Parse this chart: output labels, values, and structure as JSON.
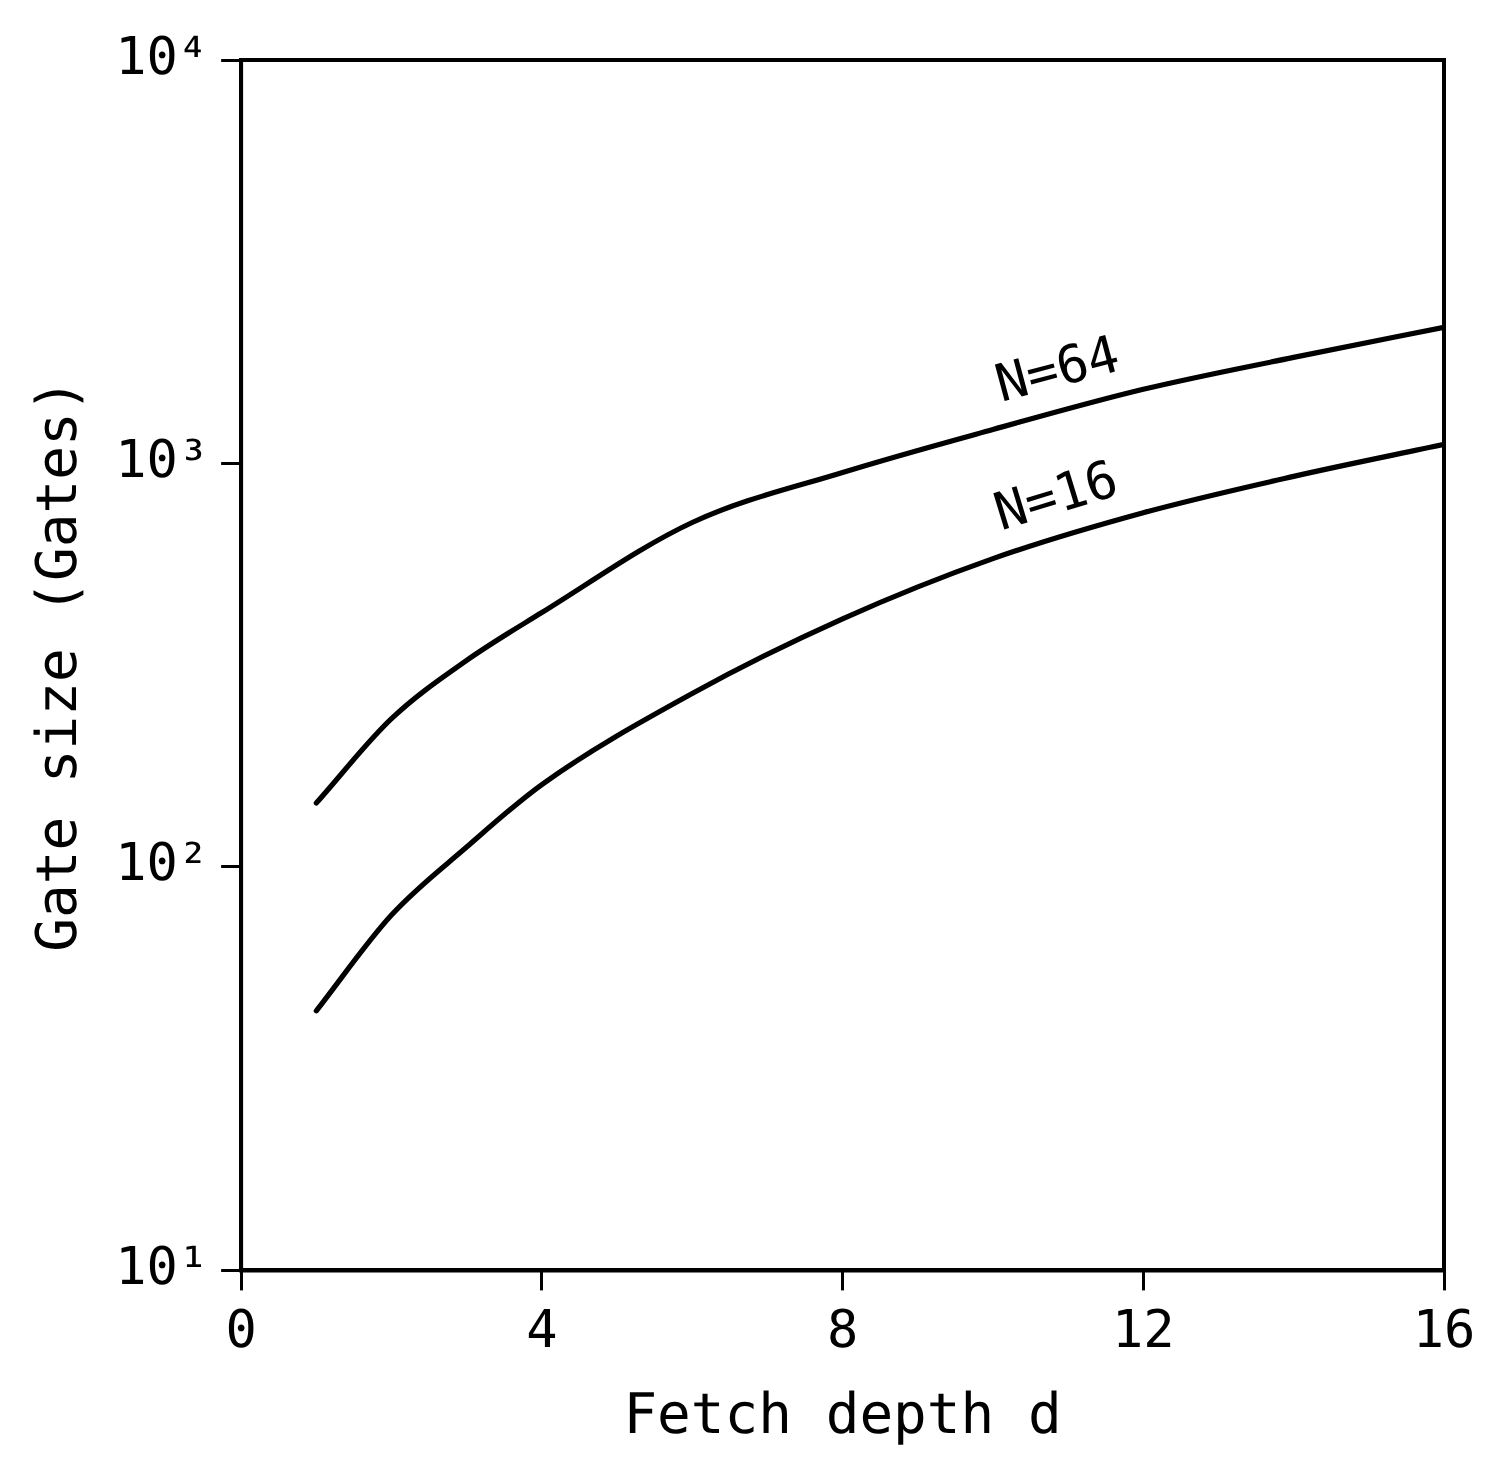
{
  "chart_data": {
    "type": "line",
    "xlabel": "Fetch depth d",
    "ylabel": "Gate size (Gates)",
    "x": [
      1,
      2,
      3,
      4,
      6,
      8,
      10,
      12,
      14,
      16
    ],
    "series": [
      {
        "name": "N=64",
        "color": "#000000",
        "values": [
          144,
          233,
          325,
          427,
          714,
          950,
          1214,
          1527,
          1832,
          2175
        ]
      },
      {
        "name": "N=16",
        "color": "#000000",
        "values": [
          44,
          76,
          112,
          160,
          269,
          412,
          581,
          755,
          929,
          1115
        ]
      }
    ],
    "xlim": [
      0,
      16
    ],
    "xticks": [
      0,
      4,
      8,
      12,
      16
    ],
    "ylim": [
      10,
      10000
    ],
    "yticks": [
      {
        "value": 10,
        "label": "10¹"
      },
      {
        "value": 100,
        "label": "10²"
      },
      {
        "value": 1000,
        "label": "10³"
      },
      {
        "value": 10000,
        "label": "10⁴"
      }
    ],
    "log": "y",
    "grid": false,
    "legend": false,
    "marker": "none",
    "line_style": "solid"
  }
}
